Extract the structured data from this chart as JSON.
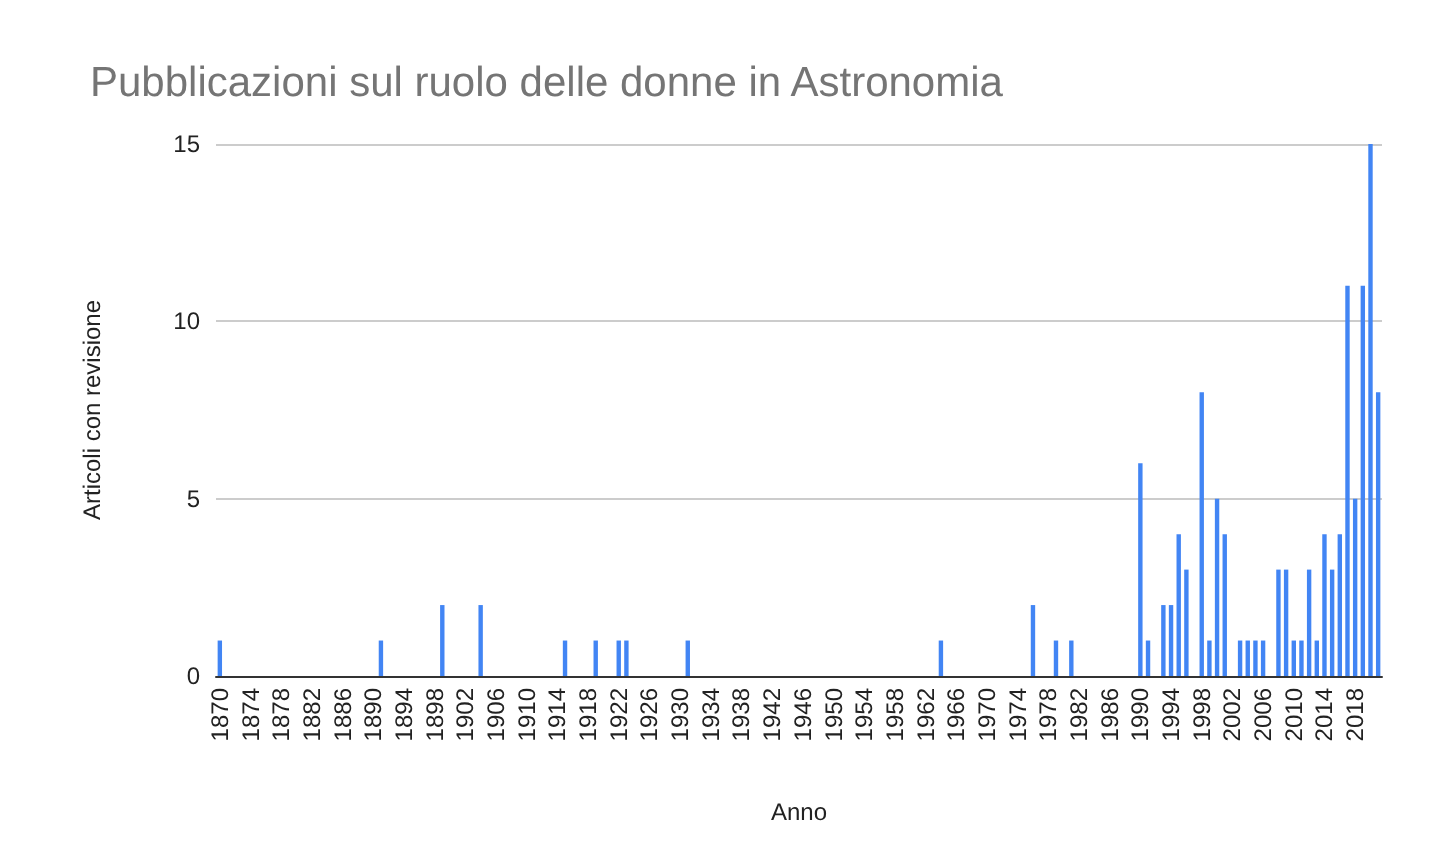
{
  "chart_data": {
    "type": "bar",
    "title": "Pubblicazioni sul ruolo delle donne in Astronomia",
    "xlabel": "Anno",
    "ylabel": "Articoli con revisione",
    "categories": [
      "1870",
      null,
      null,
      null,
      "1874",
      null,
      null,
      null,
      "1878",
      null,
      null,
      null,
      "1882",
      null,
      null,
      null,
      "1886",
      null,
      null,
      null,
      "1890",
      null,
      null,
      null,
      "1894",
      null,
      null,
      null,
      "1898",
      null,
      null,
      null,
      "1902",
      null,
      null,
      null,
      "1906",
      null,
      null,
      null,
      "1910",
      null,
      null,
      null,
      "1914",
      null,
      null,
      null,
      "1918",
      null,
      null,
      null,
      "1922",
      null,
      null,
      null,
      "1926",
      null,
      null,
      null,
      "1930",
      null,
      null,
      null,
      "1934",
      null,
      null,
      null,
      "1938",
      null,
      null,
      null,
      "1942",
      null,
      null,
      null,
      "1946",
      null,
      null,
      null,
      "1950",
      null,
      null,
      null,
      "1954",
      null,
      null,
      null,
      "1958",
      null,
      null,
      null,
      "1962",
      null,
      null,
      null,
      "1966",
      null,
      null,
      null,
      "1970",
      null,
      null,
      null,
      "1974",
      null,
      null,
      null,
      "1978",
      null,
      null,
      null,
      "1982",
      null,
      null,
      null,
      "1986",
      null,
      null,
      null,
      "1990",
      null,
      null,
      null,
      "1994",
      null,
      null,
      null,
      "1998",
      null,
      null,
      null,
      "2002",
      null,
      null,
      null,
      "2006",
      null,
      null,
      null,
      "2010",
      null,
      null,
      null,
      "2014",
      null,
      null,
      null,
      "2018",
      null,
      null,
      null
    ],
    "values": [
      1,
      0,
      0,
      0,
      0,
      0,
      0,
      0,
      0,
      0,
      0,
      0,
      0,
      0,
      0,
      0,
      0,
      0,
      0,
      0,
      0,
      1,
      0,
      0,
      0,
      0,
      0,
      0,
      0,
      2,
      0,
      0,
      0,
      0,
      2,
      0,
      0,
      0,
      0,
      0,
      0,
      0,
      0,
      0,
      0,
      1,
      0,
      0,
      0,
      1,
      0,
      0,
      1,
      1,
      0,
      0,
      0,
      0,
      0,
      0,
      0,
      1,
      0,
      0,
      0,
      0,
      0,
      0,
      0,
      0,
      0,
      0,
      0,
      0,
      0,
      0,
      0,
      0,
      0,
      0,
      0,
      0,
      0,
      0,
      0,
      0,
      0,
      0,
      0,
      0,
      0,
      0,
      0,
      0,
      1,
      0,
      0,
      0,
      0,
      0,
      0,
      0,
      0,
      0,
      0,
      0,
      2,
      0,
      0,
      1,
      0,
      1,
      0,
      0,
      0,
      0,
      0,
      0,
      0,
      0,
      6,
      1,
      0,
      2,
      2,
      4,
      3,
      0,
      8,
      1,
      5,
      4,
      0,
      1,
      1,
      1,
      1,
      0,
      3,
      3,
      1,
      1,
      3,
      1,
      4,
      3,
      4,
      11,
      5,
      11,
      15,
      8
    ],
    "color": "#4285f4",
    "ylim": [
      0,
      15
    ],
    "yticks": [
      0,
      5,
      10,
      15
    ],
    "grid": "y"
  }
}
